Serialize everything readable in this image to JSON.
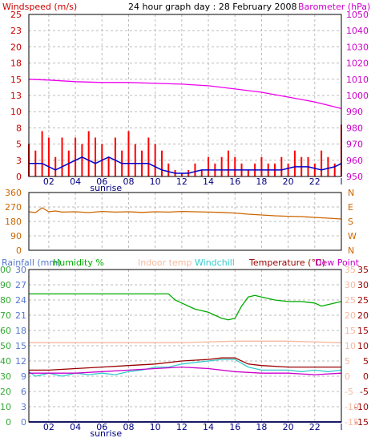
{
  "chart_data": [
    {
      "type": "line",
      "title": "24 hour graph day : 28 February 2008",
      "left_axis_label": "Windspeed (m/s)",
      "right_axis_label": "Barometer (hPa)",
      "x_tick_labels": [
        "02",
        "04",
        "06",
        "08",
        "10",
        "12",
        "14",
        "16",
        "18",
        "20",
        "22",
        "l"
      ],
      "x_sub_label": "sunrise",
      "left_ticks": [
        "0",
        "3",
        "5",
        "8",
        "10",
        "13",
        "15",
        "18",
        "20",
        "23",
        "25"
      ],
      "left_ylim": [
        0,
        25
      ],
      "right_ticks": [
        "950",
        "960",
        "970",
        "980",
        "990",
        "1000",
        "1010",
        "1020",
        "1030",
        "1040",
        "1050"
      ],
      "right_ylim": [
        950,
        1050
      ],
      "x_hours": [
        0.5,
        24
      ],
      "series": [
        {
          "name": "Windspeed (m/s)",
          "axis": "left",
          "color": "#ff0000",
          "style": "bars",
          "x": [
            0.5,
            1,
            1.5,
            2,
            2.5,
            3,
            3.5,
            4,
            4.5,
            5,
            5.5,
            6,
            6.5,
            7,
            7.5,
            8,
            8.5,
            9,
            9.5,
            10,
            10.5,
            11,
            11.5,
            12,
            12.5,
            13,
            13.5,
            14,
            14.5,
            15,
            15.5,
            16,
            16.5,
            17,
            17.5,
            18,
            18.5,
            19,
            19.5,
            20,
            20.5,
            21,
            21.5,
            22,
            22.5,
            23,
            23.5,
            24
          ],
          "values": [
            5,
            4,
            7,
            6,
            3,
            6,
            4,
            6,
            5,
            7,
            6,
            5,
            3,
            6,
            4,
            7,
            5,
            4,
            6,
            5,
            4,
            2,
            1,
            0.5,
            1,
            2,
            1,
            3,
            2,
            3,
            4,
            3,
            2,
            1,
            2,
            3,
            2,
            2,
            3,
            2,
            4,
            3,
            3,
            2,
            4,
            3,
            2,
            8
          ]
        },
        {
          "name": "Windspeed average",
          "axis": "left",
          "color": "#0000cc",
          "style": "line",
          "x": [
            0.5,
            1.5,
            2.5,
            3.5,
            4.5,
            5.5,
            6.5,
            7.5,
            8.5,
            9.5,
            10.5,
            11.5,
            12.5,
            13.5,
            14.5,
            15.5,
            16.5,
            17.5,
            18.5,
            19.5,
            20.5,
            21.5,
            22.5,
            23.5,
            24
          ],
          "values": [
            2,
            2,
            1,
            2,
            3,
            2,
            3,
            2,
            2,
            2,
            1,
            0.5,
            0.5,
            1,
            1,
            1,
            1,
            1,
            1,
            1,
            1.5,
            1.5,
            1,
            1.5,
            2
          ]
        },
        {
          "name": "Barometer (hPa)",
          "axis": "right",
          "color": "#ee00ee",
          "style": "line",
          "x": [
            0.5,
            2,
            4,
            6,
            8,
            10,
            12,
            14,
            16,
            18,
            20,
            22,
            24
          ],
          "values": [
            1010,
            1009.5,
            1008.5,
            1008,
            1008,
            1007.5,
            1007,
            1006,
            1004,
            1002,
            999,
            996,
            992
          ]
        }
      ]
    },
    {
      "type": "line",
      "left_ticks": [
        "0",
        "90",
        "180",
        "270",
        "360"
      ],
      "right_ticks": [
        "N",
        "W",
        "S",
        "E",
        "N"
      ],
      "ylim": [
        0,
        360
      ],
      "series": [
        {
          "name": "Wind direction",
          "color": "#cc6600",
          "x": [
            0.5,
            1,
            1.5,
            2,
            2.5,
            3,
            4,
            5,
            6,
            7,
            8,
            9,
            10,
            11,
            12,
            13,
            14,
            15,
            16,
            17,
            18,
            19,
            20,
            21,
            22,
            23,
            24
          ],
          "values": [
            240,
            235,
            265,
            240,
            245,
            238,
            240,
            235,
            242,
            238,
            240,
            236,
            240,
            238,
            242,
            240,
            238,
            236,
            232,
            225,
            220,
            215,
            212,
            210,
            205,
            200,
            195
          ]
        }
      ]
    },
    {
      "type": "line",
      "header_labels": [
        {
          "text": "Rainfall (mm)",
          "color": "#5577cc"
        },
        {
          "text": "Humidity %",
          "color": "#00aa00"
        },
        {
          "text": "Indoor temp",
          "color": "#f5b9a0"
        },
        {
          "text": "Windchill",
          "color": "#33cccc"
        },
        {
          "text": "Temperature (°C)",
          "color": "#990000"
        },
        {
          "text": "Dew Point",
          "color": "#cc00cc"
        }
      ],
      "left_outer_ticks": [
        "0",
        "10",
        "20",
        "30",
        "40",
        "50",
        "60",
        "70",
        "80",
        "90",
        "100"
      ],
      "left_inner_ticks": [
        "0",
        "3",
        "6",
        "9",
        "12",
        "15",
        "18",
        "21",
        "24",
        "27",
        "30"
      ],
      "right_outer_ticks": [
        "-15",
        "-10",
        "-5",
        "0",
        "5",
        "10",
        "15",
        "20",
        "25",
        "30",
        "35"
      ],
      "right_inner_ticks": [
        "-15",
        "-10",
        "-5",
        "0",
        "5",
        "10",
        "15",
        "20",
        "25",
        "30",
        "35"
      ],
      "temp_ylim": [
        -15,
        35
      ],
      "humidity_ylim": [
        0,
        100
      ],
      "rain_ylim": [
        0,
        30
      ],
      "series": [
        {
          "name": "Humidity %",
          "axis": "humidity",
          "color": "#00aa00",
          "x": [
            0.5,
            2,
            4,
            6,
            8,
            10,
            11,
            11.5,
            12,
            12.5,
            13,
            13.5,
            14,
            14.5,
            15,
            15.5,
            16,
            16.5,
            17,
            17.5,
            18,
            19,
            20,
            21,
            22,
            22.5,
            23,
            24
          ],
          "values": [
            84,
            84,
            84,
            84,
            84,
            84,
            84,
            80,
            78,
            76,
            74,
            73,
            72,
            70,
            68,
            67,
            68,
            76,
            82,
            83,
            82,
            80,
            79,
            79,
            78,
            76,
            77,
            79
          ]
        },
        {
          "name": "Indoor temp",
          "axis": "temp",
          "color": "#f5b9a0",
          "x": [
            0.5,
            4,
            8,
            12,
            16,
            20,
            24
          ],
          "values": [
            11,
            11,
            11,
            11,
            11.5,
            11.5,
            11
          ]
        },
        {
          "name": "Temperature (°C)",
          "axis": "temp",
          "color": "#990000",
          "x": [
            0.5,
            2,
            4,
            6,
            8,
            10,
            12,
            14,
            15,
            16,
            17,
            18,
            20,
            22,
            24
          ],
          "values": [
            2,
            2,
            2.5,
            3,
            3.5,
            4,
            5,
            5.5,
            6,
            6,
            4,
            3.5,
            3,
            3,
            3
          ]
        },
        {
          "name": "Windchill",
          "axis": "temp",
          "color": "#33cccc",
          "x": [
            0.5,
            1,
            2,
            3,
            4,
            5,
            6,
            7,
            8,
            9,
            10,
            11,
            12,
            13,
            14,
            15,
            16,
            17,
            18,
            19,
            20,
            21,
            22,
            23,
            24
          ],
          "values": [
            1.5,
            0,
            1,
            0,
            1,
            0.5,
            1,
            0.5,
            1.5,
            2,
            3,
            3,
            4,
            4.5,
            5,
            5.5,
            5.5,
            3,
            2,
            2,
            2,
            1.5,
            2,
            1.5,
            2
          ]
        },
        {
          "name": "Dew Point",
          "axis": "temp",
          "color": "#cc00cc",
          "x": [
            0.5,
            2,
            4,
            6,
            8,
            10,
            12,
            14,
            16,
            18,
            20,
            22,
            24
          ],
          "values": [
            1,
            1,
            1,
            1.5,
            2,
            2.5,
            3,
            2.5,
            1.5,
            1,
            1,
            0.5,
            1
          ]
        },
        {
          "name": "Rainfall (mm)",
          "axis": "rain",
          "color": "#3333cc",
          "x": [
            0.5,
            24
          ],
          "values": [
            0,
            0
          ]
        }
      ]
    }
  ]
}
